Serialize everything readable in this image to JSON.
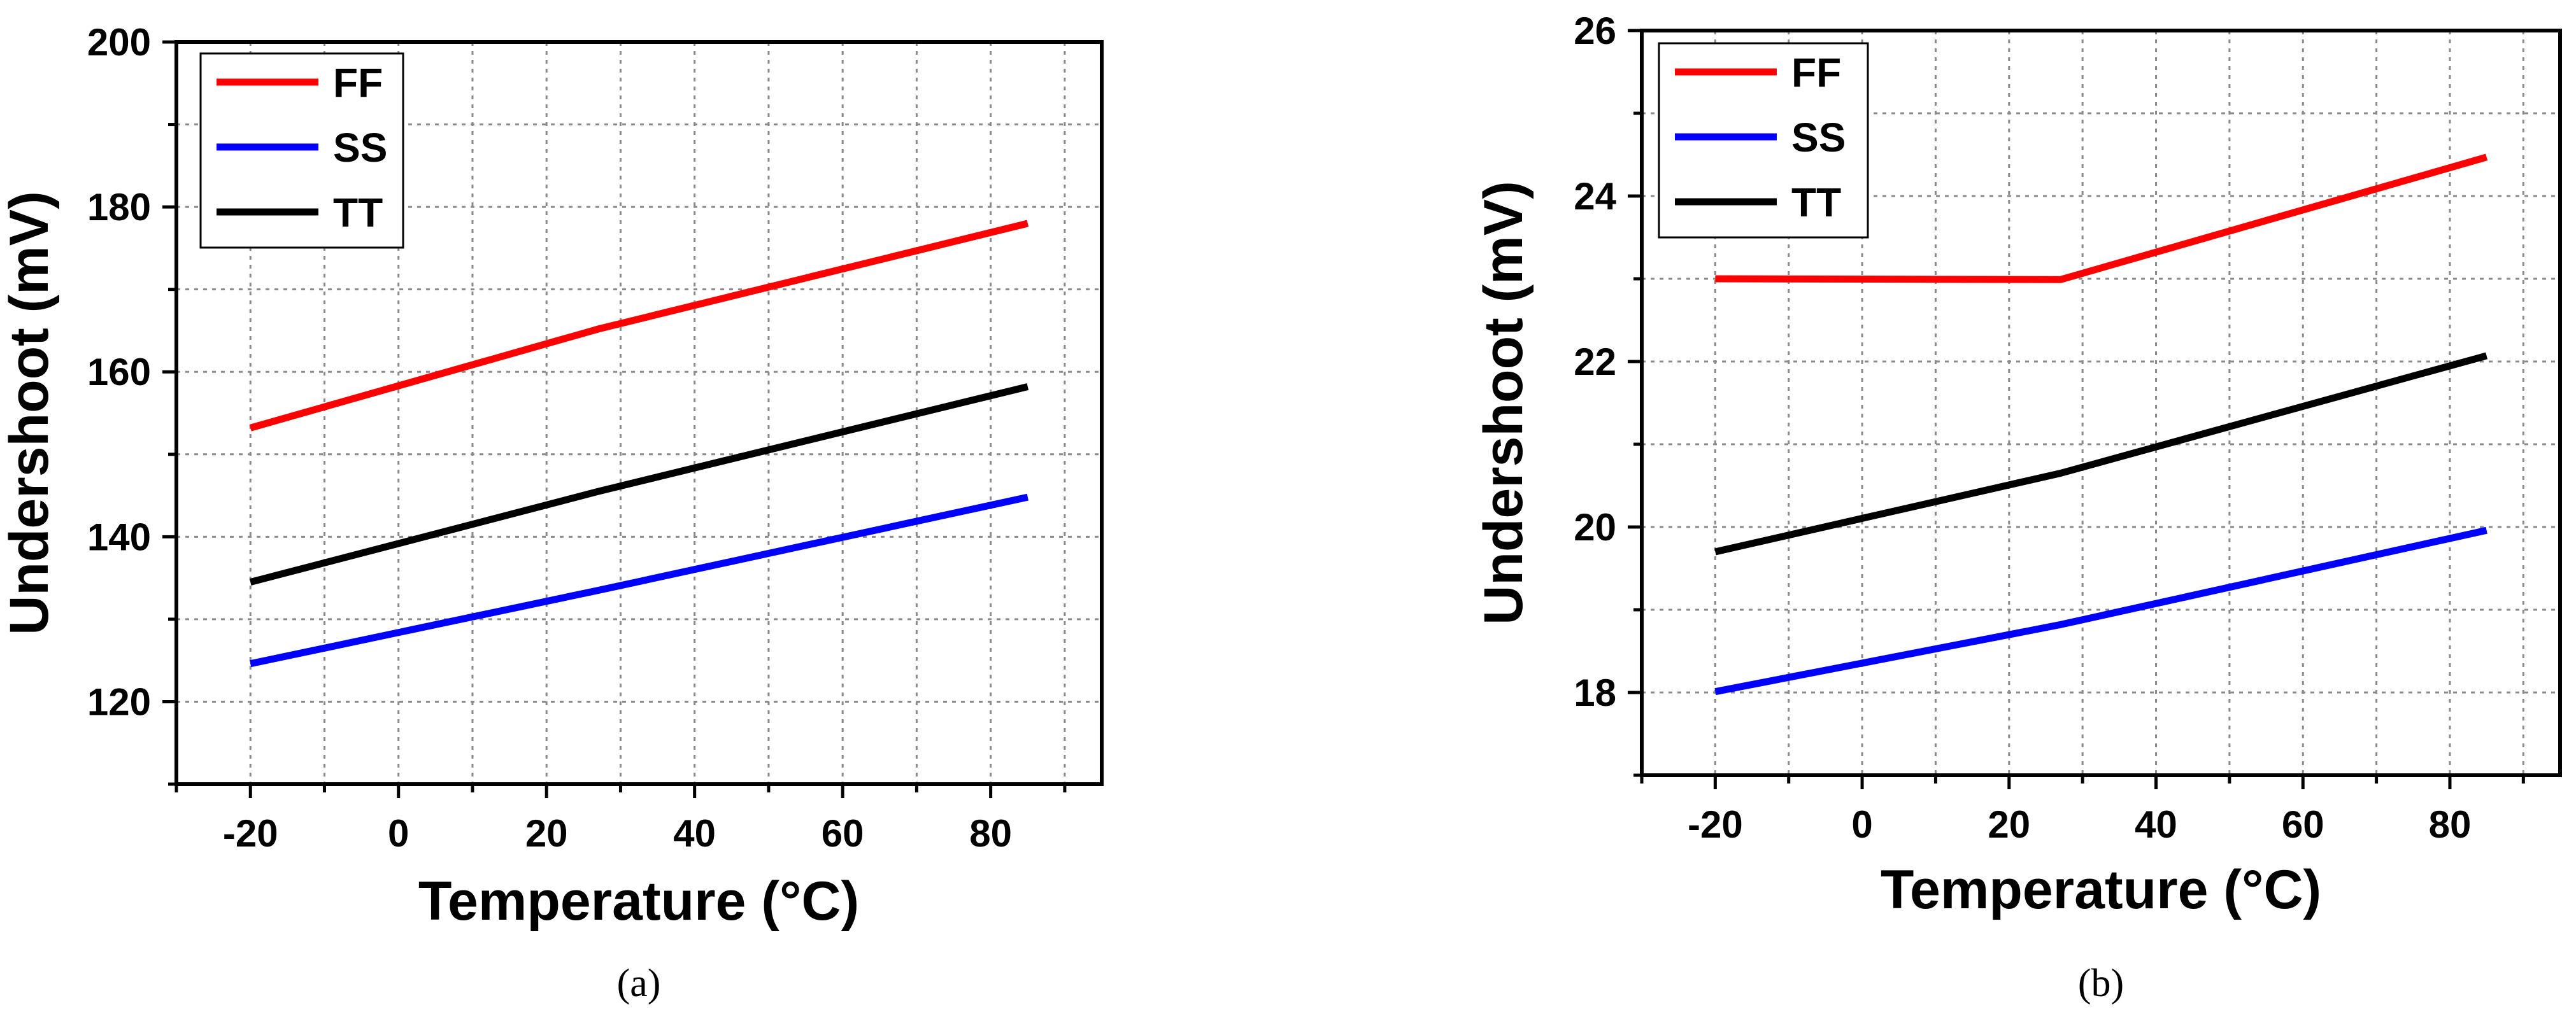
{
  "chart_data": [
    {
      "type": "line",
      "panel_label": "(a)",
      "title": "",
      "xlabel": "Temperature (°C)",
      "ylabel": "Undershoot (mV)",
      "xlim": [
        -30,
        95
      ],
      "ylim": [
        110,
        200
      ],
      "x_ticks": [
        -20,
        0,
        20,
        40,
        60,
        80
      ],
      "y_ticks": [
        120,
        140,
        160,
        180,
        200
      ],
      "grid": true,
      "legend_position": "top-left",
      "series": [
        {
          "name": "FF",
          "color": "#ff0000",
          "x": [
            -20,
            27,
            85
          ],
          "values": [
            153.2,
            165.2,
            178.0
          ]
        },
        {
          "name": "SS",
          "color": "#0000ff",
          "x": [
            -20,
            27,
            85
          ],
          "values": [
            124.6,
            133.5,
            144.8
          ]
        },
        {
          "name": "TT",
          "color": "#000000",
          "x": [
            -20,
            27,
            85
          ],
          "values": [
            134.5,
            145.5,
            158.2
          ]
        }
      ]
    },
    {
      "type": "line",
      "panel_label": "(b)",
      "title": "",
      "xlabel": "Temperature (°C)",
      "ylabel": "Undershoot (mV)",
      "xlim": [
        -30,
        95
      ],
      "ylim": [
        17,
        26
      ],
      "x_ticks": [
        -20,
        0,
        20,
        40,
        60,
        80
      ],
      "y_ticks": [
        18,
        20,
        22,
        24,
        26
      ],
      "grid": true,
      "legend_position": "top-left",
      "series": [
        {
          "name": "FF",
          "color": "#ff0000",
          "x": [
            -20,
            27,
            85
          ],
          "values": [
            23.0,
            22.99,
            24.47
          ]
        },
        {
          "name": "SS",
          "color": "#0000ff",
          "x": [
            -20,
            27,
            85
          ],
          "values": [
            18.01,
            18.82,
            19.96
          ]
        },
        {
          "name": "TT",
          "color": "#000000",
          "x": [
            -20,
            27,
            85
          ],
          "values": [
            19.7,
            20.65,
            22.07
          ]
        }
      ]
    }
  ]
}
